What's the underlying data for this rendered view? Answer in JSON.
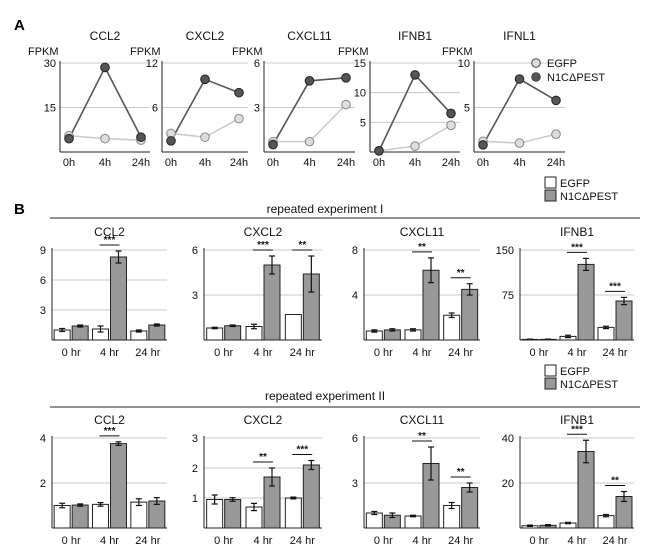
{
  "panel_labels": {
    "a": "A",
    "b": "B"
  },
  "colors": {
    "egfp_line": "#cccccc",
    "n1c_line": "#555555",
    "egfp_bar": "#ffffff",
    "n1c_bar": "#999999",
    "grid": "#c8c8c8",
    "axis": "#222222"
  },
  "legend_a": [
    {
      "label": "EGFP",
      "fill": "#dddddd"
    },
    {
      "label": "N1CΔPEST",
      "fill": "#555555"
    }
  ],
  "legend_b": [
    {
      "label": "EGFP",
      "fill": "#ffffff"
    },
    {
      "label": "N1CΔPEST",
      "fill": "#999999"
    }
  ],
  "chart_data": [
    {
      "panel": "A",
      "type": "line",
      "title": "CCL2",
      "ylabel": "FPKM",
      "x": [
        "0h",
        "4h",
        "24h"
      ],
      "ylim": [
        0,
        30
      ],
      "yticks": [
        15,
        30
      ],
      "grid": true,
      "series": [
        {
          "name": "EGFP",
          "values": [
            5.5,
            4.5,
            4
          ]
        },
        {
          "name": "N1CΔPEST",
          "values": [
            4.5,
            28.5,
            5
          ]
        }
      ]
    },
    {
      "panel": "A",
      "type": "line",
      "title": "CXCL2",
      "ylabel": "FPKM",
      "x": [
        "0h",
        "4h",
        "24h"
      ],
      "ylim": [
        0,
        12
      ],
      "yticks": [
        6,
        12
      ],
      "grid": true,
      "series": [
        {
          "name": "EGFP",
          "values": [
            2.5,
            2,
            4.5
          ]
        },
        {
          "name": "N1CΔPEST",
          "values": [
            1.5,
            9.8,
            8
          ]
        }
      ]
    },
    {
      "panel": "A",
      "type": "line",
      "title": "CXCL11",
      "ylabel": "FPKM",
      "x": [
        "0h",
        "4h",
        "24h"
      ],
      "ylim": [
        0,
        6
      ],
      "yticks": [
        3,
        6
      ],
      "grid": true,
      "series": [
        {
          "name": "EGFP",
          "values": [
            0.7,
            0.7,
            3.2
          ]
        },
        {
          "name": "N1CΔPEST",
          "values": [
            0.5,
            4.8,
            5
          ]
        }
      ]
    },
    {
      "panel": "A",
      "type": "line",
      "title": "IFNB1",
      "ylabel": "FPKM",
      "x": [
        "0h",
        "4h",
        "24h"
      ],
      "ylim": [
        0,
        15
      ],
      "yticks": [
        5,
        10,
        15
      ],
      "grid": true,
      "series": [
        {
          "name": "EGFP",
          "values": [
            0.2,
            1,
            4.5
          ]
        },
        {
          "name": "N1CΔPEST",
          "values": [
            0.2,
            13,
            6.5
          ]
        }
      ]
    },
    {
      "panel": "A",
      "type": "line",
      "title": "IFNL1",
      "ylabel": "FPKM",
      "x": [
        "0h",
        "4h",
        "24h"
      ],
      "ylim": [
        0,
        10
      ],
      "yticks": [
        5,
        10
      ],
      "grid": true,
      "series": [
        {
          "name": "EGFP",
          "values": [
            1.2,
            1,
            2
          ]
        },
        {
          "name": "N1CΔPEST",
          "values": [
            0.8,
            8.2,
            5.8
          ]
        }
      ]
    },
    {
      "panel": "B",
      "experiment": "repeated experiment I",
      "type": "bar",
      "title": "CCL2",
      "categories": [
        "0 hr",
        "4 hr",
        "24 hr"
      ],
      "ylim": [
        0,
        9
      ],
      "yticks": [
        3,
        6,
        9
      ],
      "grid": true,
      "series": [
        {
          "name": "EGFP",
          "values": [
            1,
            1.1,
            0.9
          ],
          "errors": [
            0.15,
            0.3,
            0.1
          ]
        },
        {
          "name": "N1CΔPEST",
          "values": [
            1.4,
            8.3,
            1.5
          ],
          "errors": [
            0.1,
            0.6,
            0.1
          ]
        }
      ],
      "significance": [
        {
          "category": "4 hr",
          "label": "***"
        }
      ]
    },
    {
      "panel": "B",
      "experiment": "repeated experiment I",
      "type": "bar",
      "title": "CXCL2",
      "categories": [
        "0 hr",
        "4 hr",
        "24 hr"
      ],
      "ylim": [
        0,
        6
      ],
      "yticks": [
        3,
        6
      ],
      "grid": true,
      "series": [
        {
          "name": "EGFP",
          "values": [
            0.8,
            0.9,
            1.7
          ],
          "errors": [
            0.05,
            0.15,
            0
          ]
        },
        {
          "name": "N1CΔPEST",
          "values": [
            0.95,
            5,
            4.4
          ],
          "errors": [
            0.05,
            0.6,
            1.2
          ]
        }
      ],
      "significance": [
        {
          "category": "4 hr",
          "label": "***"
        },
        {
          "category": "24 hr",
          "label": "**"
        }
      ]
    },
    {
      "panel": "B",
      "experiment": "repeated experiment I",
      "type": "bar",
      "title": "CXCL11",
      "categories": [
        "0 hr",
        "4 hr",
        "24 hr"
      ],
      "ylim": [
        0,
        8
      ],
      "yticks": [
        4,
        8
      ],
      "grid": true,
      "series": [
        {
          "name": "EGFP",
          "values": [
            0.8,
            0.9,
            2.2
          ],
          "errors": [
            0.1,
            0.1,
            0.2
          ]
        },
        {
          "name": "N1CΔPEST",
          "values": [
            0.9,
            6.2,
            4.5
          ],
          "errors": [
            0.1,
            1.1,
            0.5
          ]
        }
      ],
      "significance": [
        {
          "category": "4 hr",
          "label": "**"
        },
        {
          "category": "24 hr",
          "label": "**"
        }
      ]
    },
    {
      "panel": "B",
      "experiment": "repeated experiment I",
      "type": "bar",
      "title": "IFNB1",
      "categories": [
        "0 hr",
        "4 hr",
        "24 hr"
      ],
      "ylim": [
        0,
        150
      ],
      "yticks": [
        75,
        150
      ],
      "grid": true,
      "series": [
        {
          "name": "EGFP",
          "values": [
            1,
            6,
            21
          ],
          "errors": [
            0.5,
            2,
            2
          ]
        },
        {
          "name": "N1CΔPEST",
          "values": [
            1,
            126,
            65
          ],
          "errors": [
            0.5,
            10,
            6
          ]
        }
      ],
      "significance": [
        {
          "category": "4 hr",
          "label": "***"
        },
        {
          "category": "24 hr",
          "label": "***"
        }
      ]
    },
    {
      "panel": "B",
      "experiment": "repeated experiment II",
      "type": "bar",
      "title": "CCL2",
      "categories": [
        "0 hr",
        "4 hr",
        "24 hr"
      ],
      "ylim": [
        0,
        4
      ],
      "yticks": [
        2,
        4
      ],
      "grid": true,
      "series": [
        {
          "name": "EGFP",
          "values": [
            1,
            1.05,
            1.15
          ],
          "errors": [
            0.1,
            0.08,
            0.15
          ]
        },
        {
          "name": "N1CΔPEST",
          "values": [
            1.02,
            3.75,
            1.2
          ],
          "errors": [
            0.05,
            0.08,
            0.15
          ]
        }
      ],
      "significance": [
        {
          "category": "4 hr",
          "label": "***"
        }
      ]
    },
    {
      "panel": "B",
      "experiment": "repeated experiment II",
      "type": "bar",
      "title": "CXCL2",
      "categories": [
        "0 hr",
        "4 hr",
        "24 hr"
      ],
      "ylim": [
        0,
        3
      ],
      "yticks": [
        1,
        2,
        3
      ],
      "grid": true,
      "series": [
        {
          "name": "EGFP",
          "values": [
            0.95,
            0.7,
            1
          ],
          "errors": [
            0.15,
            0.12,
            0.03
          ]
        },
        {
          "name": "N1CΔPEST",
          "values": [
            0.95,
            1.7,
            2.1
          ],
          "errors": [
            0.06,
            0.3,
            0.15
          ]
        }
      ],
      "significance": [
        {
          "category": "4 hr",
          "label": "**"
        },
        {
          "category": "24 hr",
          "label": "***"
        }
      ]
    },
    {
      "panel": "B",
      "experiment": "repeated experiment II",
      "type": "bar",
      "title": "CXCL11",
      "categories": [
        "0 hr",
        "4 hr",
        "24 hr"
      ],
      "ylim": [
        0,
        6
      ],
      "yticks": [
        3,
        6
      ],
      "grid": true,
      "series": [
        {
          "name": "EGFP",
          "values": [
            1,
            0.8,
            1.5
          ],
          "errors": [
            0.1,
            0.05,
            0.2
          ]
        },
        {
          "name": "N1CΔPEST",
          "values": [
            0.85,
            4.3,
            2.7
          ],
          "errors": [
            0.15,
            1.1,
            0.3
          ]
        }
      ],
      "significance": [
        {
          "category": "4 hr",
          "label": "**"
        },
        {
          "category": "24 hr",
          "label": "**"
        }
      ]
    },
    {
      "panel": "B",
      "experiment": "repeated experiment II",
      "type": "bar",
      "title": "IFNB1",
      "categories": [
        "0 hr",
        "4 hr",
        "24 hr"
      ],
      "ylim": [
        0,
        40
      ],
      "yticks": [
        20,
        40
      ],
      "grid": true,
      "series": [
        {
          "name": "EGFP",
          "values": [
            1,
            2.2,
            5.5
          ],
          "errors": [
            0.3,
            0.3,
            0.5
          ]
        },
        {
          "name": "N1CΔPEST",
          "values": [
            1.2,
            34,
            14
          ],
          "errors": [
            0.3,
            5,
            2.2
          ]
        }
      ],
      "significance": [
        {
          "category": "4 hr",
          "label": "***"
        },
        {
          "category": "24 hr",
          "label": "**"
        }
      ]
    }
  ]
}
